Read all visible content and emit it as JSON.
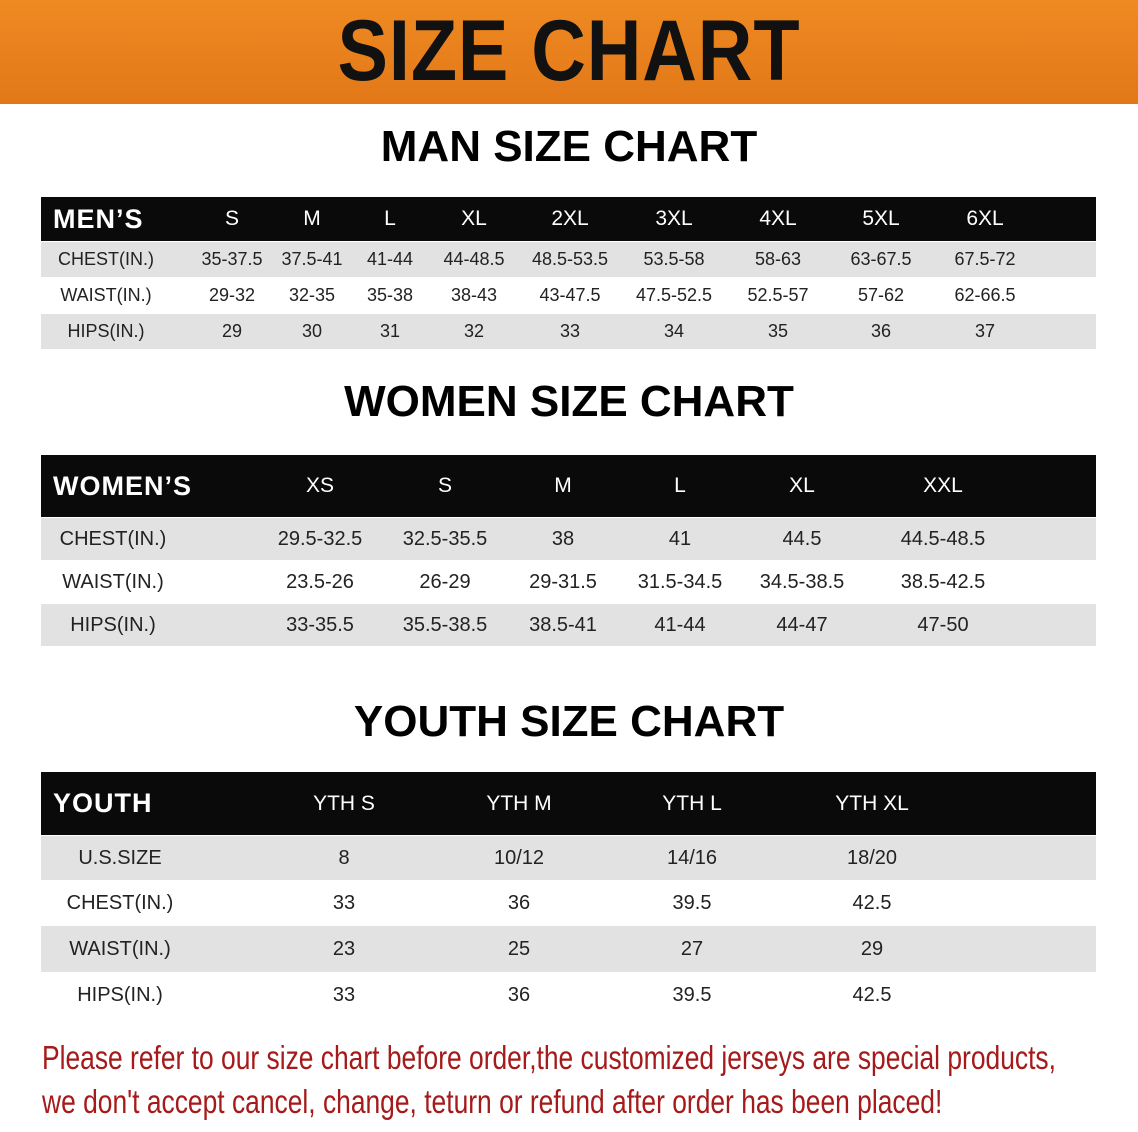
{
  "banner_title": "SIZE CHART",
  "men": {
    "title": "MAN SIZE CHART",
    "corner": "MEN’S",
    "sizes": [
      "S",
      "M",
      "L",
      "XL",
      "2XL",
      "3XL",
      "4XL",
      "5XL",
      "6XL"
    ],
    "rows": [
      {
        "label": "CHEST(IN.)",
        "values": [
          "35-37.5",
          "37.5-41",
          "41-44",
          "44-48.5",
          "48.5-53.5",
          "53.5-58",
          "58-63",
          "63-67.5",
          "67.5-72"
        ]
      },
      {
        "label": "WAIST(IN.)",
        "values": [
          "29-32",
          "32-35",
          "35-38",
          "38-43",
          "43-47.5",
          "47.5-52.5",
          "52.5-57",
          "57-62",
          "62-66.5"
        ]
      },
      {
        "label": "HIPS(IN.)",
        "values": [
          "29",
          "30",
          "31",
          "32",
          "33",
          "34",
          "35",
          "36",
          "37"
        ]
      }
    ]
  },
  "women": {
    "title": "WOMEN SIZE CHART",
    "corner": "WOMEN’S",
    "sizes": [
      "XS",
      "S",
      "M",
      "L",
      "XL",
      "XXL"
    ],
    "rows": [
      {
        "label": "CHEST(IN.)",
        "values": [
          "29.5-32.5",
          "32.5-35.5",
          "38",
          "41",
          "44.5",
          "44.5-48.5"
        ]
      },
      {
        "label": "WAIST(IN.)",
        "values": [
          "23.5-26",
          "26-29",
          "29-31.5",
          "31.5-34.5",
          "34.5-38.5",
          "38.5-42.5"
        ]
      },
      {
        "label": "HIPS(IN.)",
        "values": [
          "33-35.5",
          "35.5-38.5",
          "38.5-41",
          "41-44",
          "44-47",
          "47-50"
        ]
      }
    ]
  },
  "youth": {
    "title": "YOUTH SIZE CHART",
    "corner": "YOUTH",
    "sizes": [
      "YTH S",
      "YTH M",
      "YTH L",
      "YTH XL"
    ],
    "rows": [
      {
        "label": "U.S.SIZE",
        "values": [
          "8",
          "10/12",
          "14/16",
          "18/20"
        ]
      },
      {
        "label": "CHEST(IN.)",
        "values": [
          "33",
          "36",
          "39.5",
          "42.5"
        ]
      },
      {
        "label": "WAIST(IN.)",
        "values": [
          "23",
          "25",
          "27",
          "29"
        ]
      },
      {
        "label": "HIPS(IN.)",
        "values": [
          "33",
          "36",
          "39.5",
          "42.5"
        ]
      }
    ]
  },
  "notice": {
    "line1": "Please refer to our size chart before order,the customized jerseys are special products,",
    "line2": "we don't accept cancel, change, teturn or refund after order has been placed!"
  },
  "colors": {
    "banner": "#e8801a",
    "header": "#0a0a0a",
    "stripe": "#e2e2e2",
    "notice": "#a51a1a"
  }
}
